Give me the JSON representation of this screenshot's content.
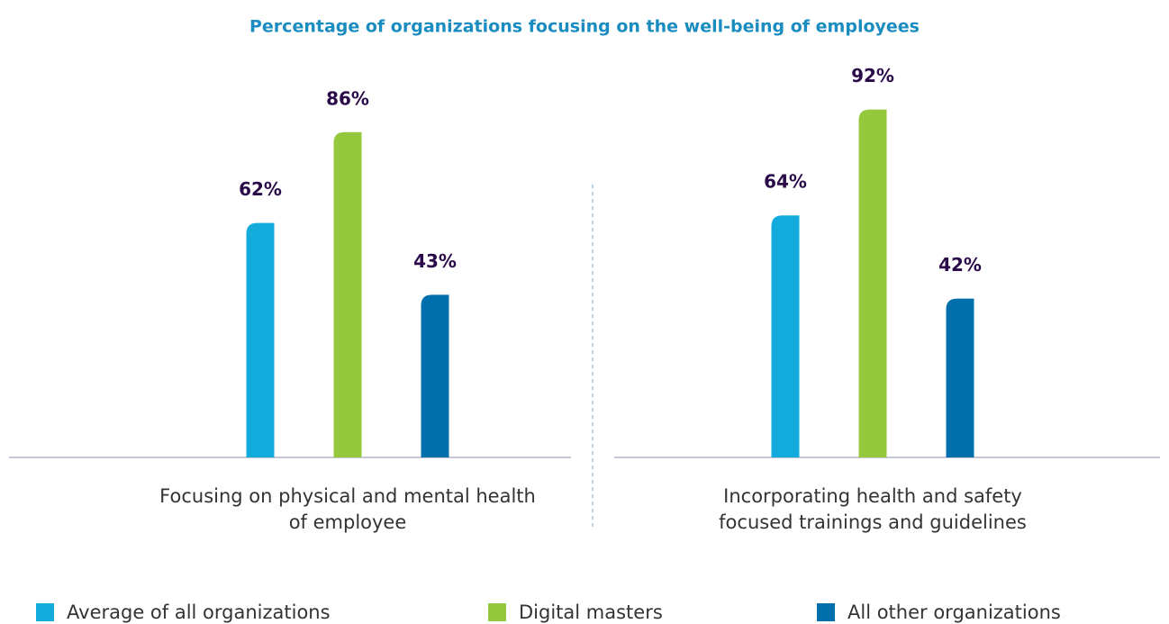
{
  "chart_data": {
    "type": "bar",
    "title": "Percentage of organizations focusing on the well-being of employees",
    "categories": [
      "Focusing on physical and mental health of employee",
      "Incorporating health and safety focused trainings and guidelines"
    ],
    "series": [
      {
        "name": "Average of all organizations",
        "color": "#12abdb",
        "values": [
          62,
          64
        ],
        "value_labels": [
          "62%",
          "64%"
        ]
      },
      {
        "name": "Digital masters",
        "color": "#95c93d",
        "values": [
          86,
          92
        ],
        "value_labels": [
          "86%",
          "92%"
        ]
      },
      {
        "name": "All other organizations",
        "color": "#0070ad",
        "values": [
          43,
          42
        ],
        "value_labels": [
          "43%",
          "42%"
        ]
      }
    ]
  }
}
